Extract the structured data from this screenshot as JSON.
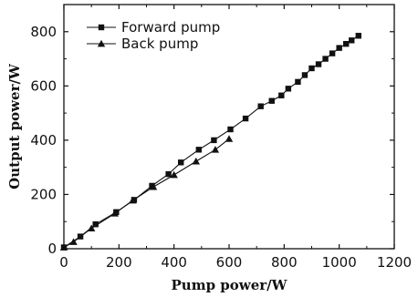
{
  "chart_data": {
    "type": "line",
    "title": "",
    "xlabel": "Pump power/W",
    "ylabel": "Output power/W",
    "xlim": [
      0,
      1200
    ],
    "ylim": [
      0,
      900
    ],
    "xticks": [
      0,
      200,
      400,
      600,
      800,
      1000,
      1200
    ],
    "yticks": [
      0,
      200,
      400,
      600,
      800
    ],
    "grid": false,
    "legend_position": "top-left",
    "series": [
      {
        "name": "Forward pump",
        "marker": "square",
        "color": "#111111",
        "x": [
          0,
          60,
          115,
          190,
          255,
          320,
          380,
          425,
          490,
          545,
          605,
          660,
          715,
          755,
          790,
          815,
          850,
          875,
          900,
          925,
          950,
          975,
          1000,
          1025,
          1045,
          1070
        ],
        "y": [
          5,
          45,
          90,
          135,
          180,
          232,
          275,
          318,
          365,
          400,
          440,
          480,
          525,
          545,
          565,
          590,
          615,
          640,
          665,
          680,
          700,
          720,
          740,
          755,
          768,
          785
        ]
      },
      {
        "name": "Back pump",
        "marker": "triangle",
        "color": "#111111",
        "x": [
          0,
          35,
          100,
          185,
          250,
          325,
          400,
          480,
          550,
          600
        ],
        "y": [
          5,
          25,
          75,
          130,
          178,
          228,
          272,
          322,
          365,
          405
        ]
      }
    ]
  }
}
